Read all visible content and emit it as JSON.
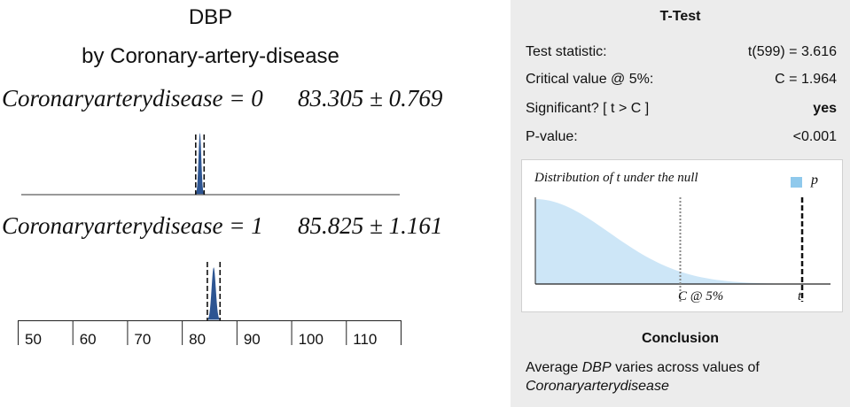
{
  "chart_data": {
    "type": "distribution",
    "title": "DBP",
    "subtitle": "by Coronary-artery-disease",
    "groups": [
      {
        "label": "Coronaryarterydisease = 0",
        "stat": "83.305 ± 0.769",
        "mean": 83.305,
        "ci": 0.769
      },
      {
        "label": "Coronaryarterydisease = 1",
        "stat": "85.825 ± 1.161",
        "mean": 85.825,
        "ci": 1.161
      }
    ],
    "axis": {
      "ticks": [
        "50",
        "60",
        "70",
        "80",
        "90",
        "100",
        "110"
      ],
      "min": 50,
      "max": 120
    },
    "fill_color": "#2d5592"
  },
  "ttest": {
    "title": "T-Test",
    "rows": [
      {
        "label": "Test statistic:",
        "value": "t(599) = 3.616"
      },
      {
        "label": "Critical value @ 5%:",
        "value": "C = 1.964"
      },
      {
        "label": "Significant? [ t > C ]",
        "value": "yes"
      },
      {
        "label": "P-value:",
        "value": "<0.001"
      }
    ],
    "null_dist": {
      "title": "Distribution of t under the null",
      "legend": "p",
      "critical_label": "C @ 5%",
      "t_label": "t",
      "critical": 1.964,
      "t": 3.616,
      "fill_color": "#cde6f7",
      "swatch_color": "#8fc9ec"
    },
    "conclusion": {
      "title": "Conclusion",
      "prefix": "Average ",
      "variable": "DBP",
      "middle": " varies across values of ",
      "group": "Coronaryarterydisease"
    }
  }
}
